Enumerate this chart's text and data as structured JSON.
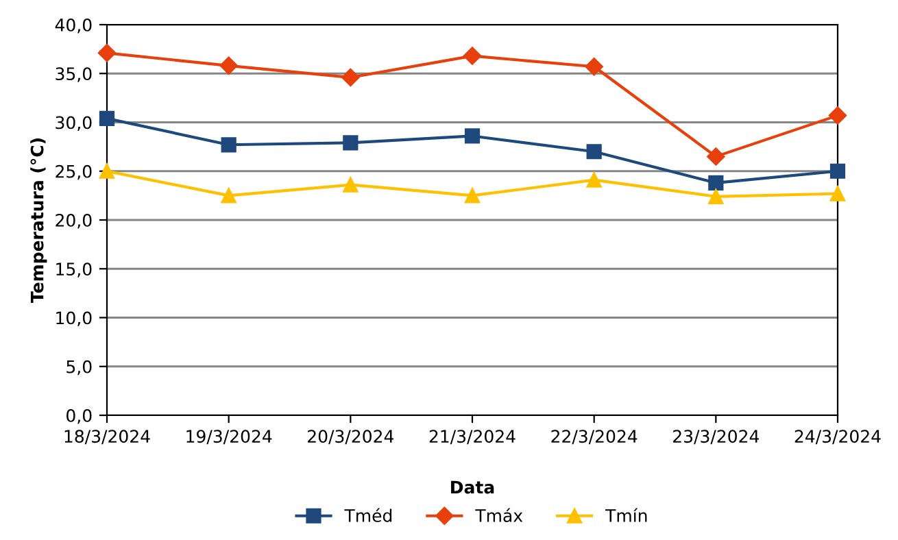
{
  "chart_data": {
    "type": "line",
    "xlabel": "Data",
    "ylabel": "Temperatura (°C)",
    "categories": [
      "18/3/2024",
      "19/3/2024",
      "20/3/2024",
      "21/3/2024",
      "22/3/2024",
      "23/3/2024",
      "24/3/2024"
    ],
    "series": [
      {
        "name": "Tméd",
        "color": "#1f497d",
        "marker": "square",
        "values": [
          30.4,
          27.7,
          27.9,
          28.6,
          27.0,
          23.8,
          25.0
        ]
      },
      {
        "name": "Tmáx",
        "color": "#e8400c",
        "marker": "diamond",
        "values": [
          37.1,
          35.8,
          34.6,
          36.8,
          35.7,
          26.5,
          30.7
        ]
      },
      {
        "name": "Tmín",
        "color": "#ffc000",
        "marker": "triangle",
        "values": [
          25.0,
          22.5,
          23.6,
          22.5,
          24.1,
          22.4,
          22.7
        ]
      }
    ],
    "ylim": [
      0,
      40
    ],
    "yticks": [
      {
        "value": 0,
        "label": "0,0"
      },
      {
        "value": 5,
        "label": "5,0"
      },
      {
        "value": 10,
        "label": "10,0"
      },
      {
        "value": 15,
        "label": "15,0"
      },
      {
        "value": 20,
        "label": "20,0"
      },
      {
        "value": 25,
        "label": "25,0"
      },
      {
        "value": 30,
        "label": "30,0"
      },
      {
        "value": 35,
        "label": "35,0"
      },
      {
        "value": 40,
        "label": "40,0"
      }
    ],
    "grid": "y",
    "legend": "bottom",
    "line_style": "solid"
  }
}
